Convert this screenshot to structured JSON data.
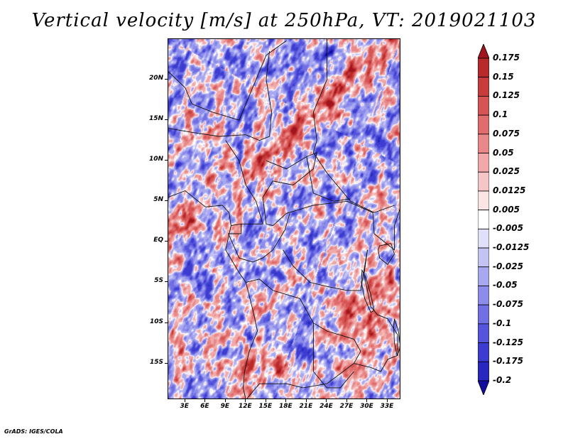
{
  "title": "Vertical velocity [m/s] at 250hPa, VT: 2019021103",
  "map": {
    "variable": "Vertical velocity",
    "units": "m/s",
    "level": "250hPa",
    "valid_time": "2019021103",
    "region": "Central and Southern Africa",
    "lat_labels": [
      "20N",
      "15N",
      "10N",
      "5N",
      "EQ",
      "5S",
      "10S",
      "15S"
    ],
    "lon_labels": [
      "3E",
      "6E",
      "9E",
      "12E",
      "15E",
      "18E",
      "21E",
      "24E",
      "27E",
      "30E",
      "33E"
    ],
    "lat_values": [
      20,
      15,
      10,
      5,
      0,
      -5,
      -10,
      -15
    ],
    "lon_values": [
      3,
      6,
      9,
      12,
      15,
      18,
      21,
      24,
      27,
      30,
      33
    ],
    "lon_range": [
      0.5,
      35
    ],
    "lat_range": [
      -19.5,
      25
    ]
  },
  "colorbar": {
    "labels": [
      "0.175",
      "0.15",
      "0.125",
      "0.1",
      "0.075",
      "0.05",
      "0.025",
      "0.0125",
      "0.005",
      "-0.005",
      "-0.0125",
      "-0.025",
      "-0.05",
      "-0.075",
      "-0.1",
      "-0.125",
      "-0.175",
      "-0.2"
    ],
    "colors": [
      "#a0141e",
      "#b82a2a",
      "#c83c3c",
      "#d65454",
      "#e06c6c",
      "#e88888",
      "#f0a8a8",
      "#f6c6c6",
      "#fbe4e4",
      "#ffffff",
      "#e0e0fa",
      "#c4c4f4",
      "#a8a8f0",
      "#8c8ceb",
      "#7070e4",
      "#5454dc",
      "#3c3cd0",
      "#2828c0",
      "#140ca0"
    ]
  },
  "footer": "GrADS: IGES/COLA"
}
